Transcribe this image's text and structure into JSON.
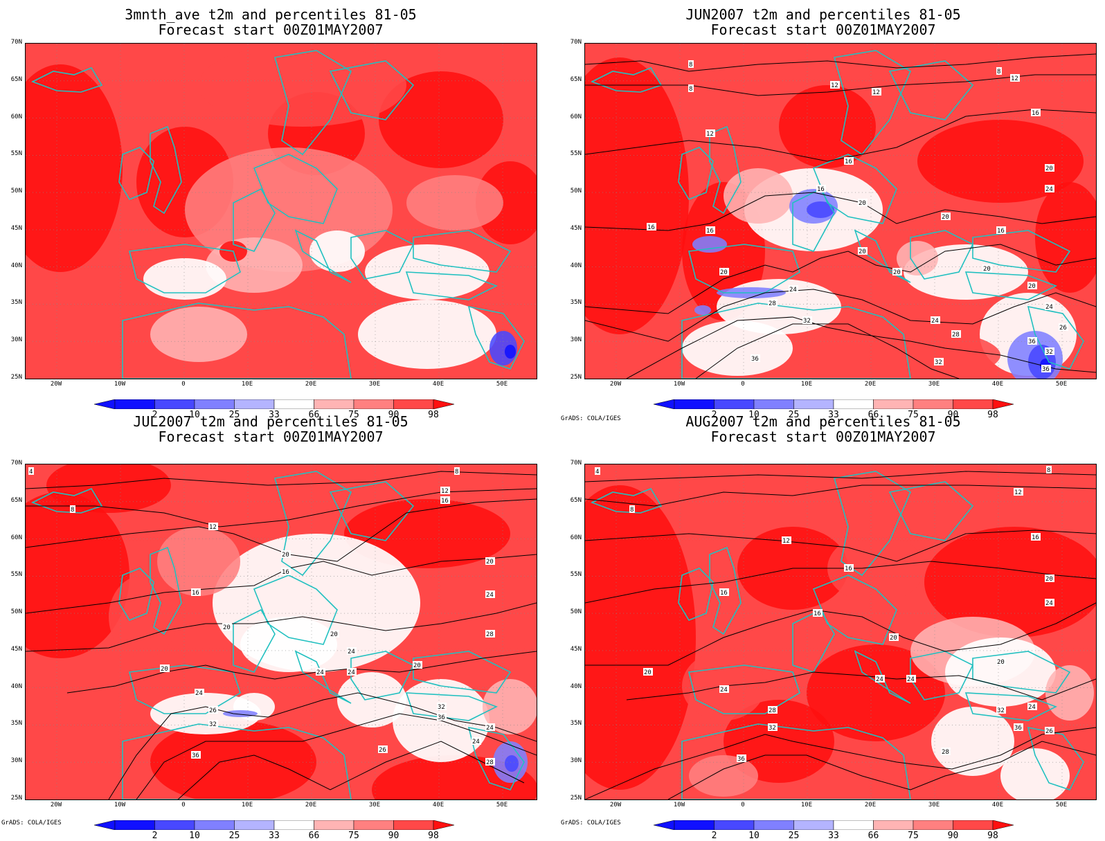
{
  "panels": [
    {
      "title_line1": "3mnth_ave t2m and percentiles 81-05",
      "title_line2": "Forecast start 00Z01MAY2007",
      "credit": "",
      "contours": false
    },
    {
      "title_line1": "JUN2007 t2m and percentiles 81-05",
      "title_line2": "Forecast start 00Z01MAY2007",
      "credit": "GrADS: COLA/IGES",
      "contours": true
    },
    {
      "title_line1": "JUL2007 t2m and percentiles 81-05",
      "title_line2": "Forecast start 00Z01MAY2007",
      "credit": "GrADS: COLA/IGES",
      "contours": true
    },
    {
      "title_line1": "AUG2007 t2m and percentiles 81-05",
      "title_line2": "Forecast start 00Z01MAY2007",
      "credit": "GrADS: COLA/IGES",
      "contours": true
    }
  ],
  "lat_labels": [
    "70N",
    "65N",
    "60N",
    "55N",
    "50N",
    "45N",
    "40N",
    "35N",
    "30N",
    "25N"
  ],
  "lon_labels": [
    "20W",
    "10W",
    "0",
    "10E",
    "20E",
    "30E",
    "40E",
    "50E"
  ],
  "colorbar": {
    "labels": [
      "2",
      "10",
      "25",
      "33",
      "66",
      "75",
      "90",
      "98"
    ],
    "colors": [
      "#1010ff",
      "#4848ff",
      "#8080ff",
      "#b4b4ff",
      "#ffffff",
      "#ffb4b4",
      "#ff8080",
      "#ff4848",
      "#ff1010"
    ]
  },
  "contour_labels": [
    "8",
    "12",
    "16",
    "20",
    "24",
    "28",
    "32",
    "36"
  ],
  "colors": {
    "coast": "#20c0c0",
    "contour": "#000000",
    "base_red": "#fa6a6a"
  }
}
